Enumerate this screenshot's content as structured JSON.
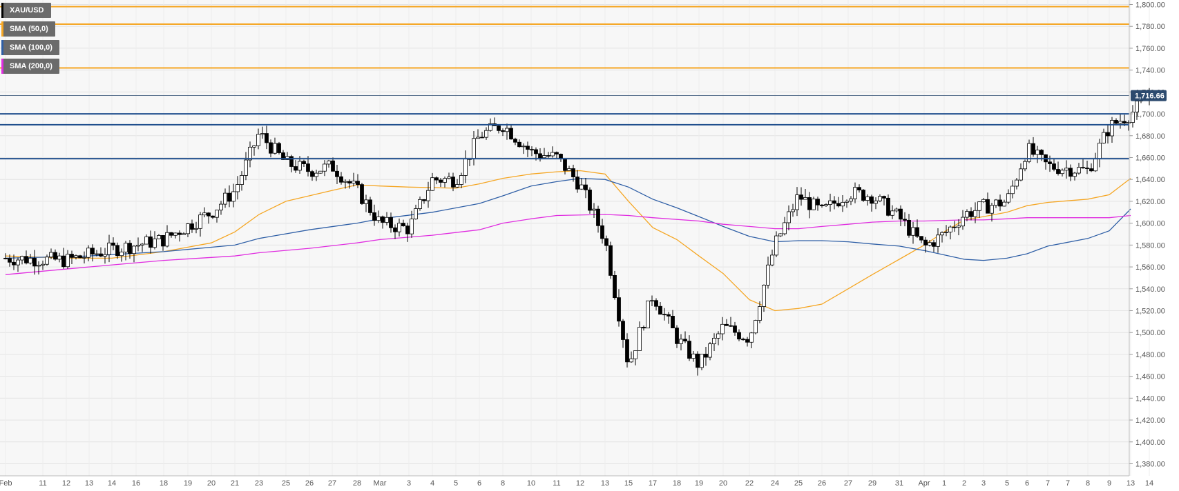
{
  "legend": {
    "items": [
      {
        "label": "XAU/USD",
        "color": "#000000"
      },
      {
        "label": "SMA (50,0)",
        "color": "#f5a623"
      },
      {
        "label": "SMA (100,0)",
        "color": "#2f5fa6"
      },
      {
        "label": "SMA (200,0)",
        "color": "#e02de0"
      }
    ]
  },
  "price_tag": "1,716.66",
  "chart_data": {
    "type": "candlestick",
    "title": "",
    "xlabel": "",
    "ylabel": "",
    "ylim": [
      1370,
      1805
    ],
    "grid": true,
    "y_ticks": [
      {
        "value": 1380,
        "label": "1,380.00"
      },
      {
        "value": 1400,
        "label": "1,400.00"
      },
      {
        "value": 1420,
        "label": "1,420.00"
      },
      {
        "value": 1440,
        "label": "1,440.00"
      },
      {
        "value": 1460,
        "label": "1,460.00"
      },
      {
        "value": 1480,
        "label": "1,480.00"
      },
      {
        "value": 1500,
        "label": "1,500.00"
      },
      {
        "value": 1520,
        "label": "1,520.00"
      },
      {
        "value": 1540,
        "label": "1,540.00"
      },
      {
        "value": 1560,
        "label": "1,560.00"
      },
      {
        "value": 1580,
        "label": "1,580.00"
      },
      {
        "value": 1600,
        "label": "1,600.00"
      },
      {
        "value": 1620,
        "label": "1,620.00"
      },
      {
        "value": 1640,
        "label": "1,640.00"
      },
      {
        "value": 1660,
        "label": "1,660.00"
      },
      {
        "value": 1680,
        "label": "1,680.00"
      },
      {
        "value": 1700,
        "label": "1,700.00"
      },
      {
        "value": 1720,
        "label": "1,720.00"
      },
      {
        "value": 1740,
        "label": "1,740.00"
      },
      {
        "value": 1760,
        "label": "1,760.00"
      },
      {
        "value": 1780,
        "label": "1,780.00"
      },
      {
        "value": 1800,
        "label": "1,800.00"
      }
    ],
    "x_ticks": [
      "Feb",
      "11",
      "12",
      "13",
      "14",
      "16",
      "18",
      "19",
      "20",
      "21",
      "23",
      "25",
      "26",
      "27",
      "28",
      "Mar",
      "3",
      "4",
      "5",
      "6",
      "8",
      "10",
      "11",
      "12",
      "13",
      "15",
      "17",
      "18",
      "19",
      "20",
      "22",
      "24",
      "25",
      "26",
      "27",
      "29",
      "31",
      "Apr",
      "1",
      "2",
      "3",
      "5",
      "6",
      "7",
      "7",
      "8",
      "9",
      "13",
      "14"
    ],
    "resistance_levels": [
      1798,
      1782,
      1742
    ],
    "support_levels": [
      1700,
      1690,
      1659
    ],
    "last_price": 1716.66,
    "price_anchors": [
      {
        "x": "Feb",
        "y": 1568
      },
      {
        "x": "12",
        "y": 1566
      },
      {
        "x": "14",
        "y": 1576
      },
      {
        "x": "18",
        "y": 1585
      },
      {
        "x": "20",
        "y": 1610
      },
      {
        "x": "21",
        "y": 1630
      },
      {
        "x": "23",
        "y": 1682
      },
      {
        "x": "25",
        "y": 1655
      },
      {
        "x": "26",
        "y": 1648
      },
      {
        "x": "27",
        "y": 1652
      },
      {
        "x": "28",
        "y": 1630
      },
      {
        "x": "Mar",
        "y": 1600
      },
      {
        "x": "3",
        "y": 1595
      },
      {
        "x": "4",
        "y": 1640
      },
      {
        "x": "5",
        "y": 1640
      },
      {
        "x": "6",
        "y": 1680
      },
      {
        "x": "8",
        "y": 1690
      },
      {
        "x": "10",
        "y": 1665
      },
      {
        "x": "11",
        "y": 1660
      },
      {
        "x": "12",
        "y": 1635
      },
      {
        "x": "13",
        "y": 1585
      },
      {
        "x": "15",
        "y": 1470
      },
      {
        "x": "17",
        "y": 1535
      },
      {
        "x": "18",
        "y": 1495
      },
      {
        "x": "19",
        "y": 1470
      },
      {
        "x": "20",
        "y": 1505
      },
      {
        "x": "22",
        "y": 1495
      },
      {
        "x": "24",
        "y": 1580
      },
      {
        "x": "25",
        "y": 1625
      },
      {
        "x": "26",
        "y": 1610
      },
      {
        "x": "27",
        "y": 1628
      },
      {
        "x": "29",
        "y": 1625
      },
      {
        "x": "31",
        "y": 1605
      },
      {
        "x": "Apr",
        "y": 1578
      },
      {
        "x": "1",
        "y": 1590
      },
      {
        "x": "2",
        "y": 1608
      },
      {
        "x": "3",
        "y": 1615
      },
      {
        "x": "5",
        "y": 1620
      },
      {
        "x": "6",
        "y": 1668
      },
      {
        "x": "7",
        "y": 1652
      },
      {
        "x": "8",
        "y": 1648
      },
      {
        "x": "9",
        "y": 1688
      },
      {
        "x": "13",
        "y": 1700
      },
      {
        "x": "14",
        "y": 1716.66
      }
    ],
    "series": [
      {
        "name": "SMA (50,0)",
        "color": "#f5a623",
        "points": [
          {
            "x": "Feb",
            "y": 1570
          },
          {
            "x": "12",
            "y": 1568
          },
          {
            "x": "14",
            "y": 1568
          },
          {
            "x": "18",
            "y": 1574
          },
          {
            "x": "20",
            "y": 1582
          },
          {
            "x": "21",
            "y": 1592
          },
          {
            "x": "23",
            "y": 1608
          },
          {
            "x": "25",
            "y": 1620
          },
          {
            "x": "27",
            "y": 1630
          },
          {
            "x": "28",
            "y": 1635
          },
          {
            "x": "Mar",
            "y": 1634
          },
          {
            "x": "3",
            "y": 1633
          },
          {
            "x": "5",
            "y": 1632
          },
          {
            "x": "6",
            "y": 1636
          },
          {
            "x": "8",
            "y": 1641
          },
          {
            "x": "10",
            "y": 1645
          },
          {
            "x": "11",
            "y": 1647
          },
          {
            "x": "12",
            "y": 1648
          },
          {
            "x": "13",
            "y": 1645
          },
          {
            "x": "15",
            "y": 1620
          },
          {
            "x": "17",
            "y": 1596
          },
          {
            "x": "18",
            "y": 1585
          },
          {
            "x": "19",
            "y": 1570
          },
          {
            "x": "20",
            "y": 1554
          },
          {
            "x": "22",
            "y": 1530
          },
          {
            "x": "24",
            "y": 1520
          },
          {
            "x": "25",
            "y": 1522
          },
          {
            "x": "26",
            "y": 1526
          },
          {
            "x": "27",
            "y": 1540
          },
          {
            "x": "29",
            "y": 1553
          },
          {
            "x": "31",
            "y": 1567
          },
          {
            "x": "Apr",
            "y": 1580
          },
          {
            "x": "1",
            "y": 1592
          },
          {
            "x": "2",
            "y": 1603
          },
          {
            "x": "3",
            "y": 1606
          },
          {
            "x": "5",
            "y": 1610
          },
          {
            "x": "6",
            "y": 1616
          },
          {
            "x": "7",
            "y": 1619
          },
          {
            "x": "8",
            "y": 1622
          },
          {
            "x": "9",
            "y": 1626
          },
          {
            "x": "13",
            "y": 1641
          }
        ]
      },
      {
        "name": "SMA (100,0)",
        "color": "#2f5fa6",
        "points": [
          {
            "x": "Feb",
            "y": 1568
          },
          {
            "x": "13",
            "y": 1570
          },
          {
            "x": "18",
            "y": 1574
          },
          {
            "x": "21",
            "y": 1580
          },
          {
            "x": "23",
            "y": 1586
          },
          {
            "x": "26",
            "y": 1594
          },
          {
            "x": "28",
            "y": 1600
          },
          {
            "x": "Mar",
            "y": 1604
          },
          {
            "x": "4",
            "y": 1610
          },
          {
            "x": "6",
            "y": 1618
          },
          {
            "x": "8",
            "y": 1625
          },
          {
            "x": "10",
            "y": 1634
          },
          {
            "x": "11",
            "y": 1638
          },
          {
            "x": "12",
            "y": 1641
          },
          {
            "x": "13",
            "y": 1640
          },
          {
            "x": "15",
            "y": 1633
          },
          {
            "x": "17",
            "y": 1622
          },
          {
            "x": "18",
            "y": 1614
          },
          {
            "x": "19",
            "y": 1606
          },
          {
            "x": "20",
            "y": 1597
          },
          {
            "x": "22",
            "y": 1588
          },
          {
            "x": "24",
            "y": 1583
          },
          {
            "x": "25",
            "y": 1584
          },
          {
            "x": "26",
            "y": 1584
          },
          {
            "x": "27",
            "y": 1583
          },
          {
            "x": "29",
            "y": 1581
          },
          {
            "x": "31",
            "y": 1579
          },
          {
            "x": "Apr",
            "y": 1575
          },
          {
            "x": "1",
            "y": 1571
          },
          {
            "x": "2",
            "y": 1567
          },
          {
            "x": "3",
            "y": 1566
          },
          {
            "x": "5",
            "y": 1568
          },
          {
            "x": "6",
            "y": 1572
          },
          {
            "x": "7",
            "y": 1579
          },
          {
            "x": "8",
            "y": 1586
          },
          {
            "x": "9",
            "y": 1593
          },
          {
            "x": "13",
            "y": 1613
          }
        ]
      },
      {
        "name": "SMA (200,0)",
        "color": "#e02de0",
        "points": [
          {
            "x": "Feb",
            "y": 1553
          },
          {
            "x": "13",
            "y": 1560
          },
          {
            "x": "18",
            "y": 1566
          },
          {
            "x": "21",
            "y": 1570
          },
          {
            "x": "23",
            "y": 1573
          },
          {
            "x": "26",
            "y": 1577
          },
          {
            "x": "28",
            "y": 1582
          },
          {
            "x": "Mar",
            "y": 1585
          },
          {
            "x": "4",
            "y": 1589
          },
          {
            "x": "6",
            "y": 1594
          },
          {
            "x": "8",
            "y": 1600
          },
          {
            "x": "10",
            "y": 1604
          },
          {
            "x": "11",
            "y": 1607
          },
          {
            "x": "13",
            "y": 1608
          },
          {
            "x": "15",
            "y": 1607
          },
          {
            "x": "17",
            "y": 1605
          },
          {
            "x": "19",
            "y": 1602
          },
          {
            "x": "20",
            "y": 1599
          },
          {
            "x": "22",
            "y": 1597
          },
          {
            "x": "24",
            "y": 1595
          },
          {
            "x": "25",
            "y": 1595
          },
          {
            "x": "26",
            "y": 1597
          },
          {
            "x": "27",
            "y": 1599
          },
          {
            "x": "29",
            "y": 1601
          },
          {
            "x": "31",
            "y": 1602
          },
          {
            "x": "Apr",
            "y": 1602
          },
          {
            "x": "2",
            "y": 1603
          },
          {
            "x": "3",
            "y": 1603
          },
          {
            "x": "5",
            "y": 1604
          },
          {
            "x": "6",
            "y": 1605
          },
          {
            "x": "8",
            "y": 1605
          },
          {
            "x": "9",
            "y": 1605
          },
          {
            "x": "13",
            "y": 1607
          }
        ]
      }
    ]
  }
}
